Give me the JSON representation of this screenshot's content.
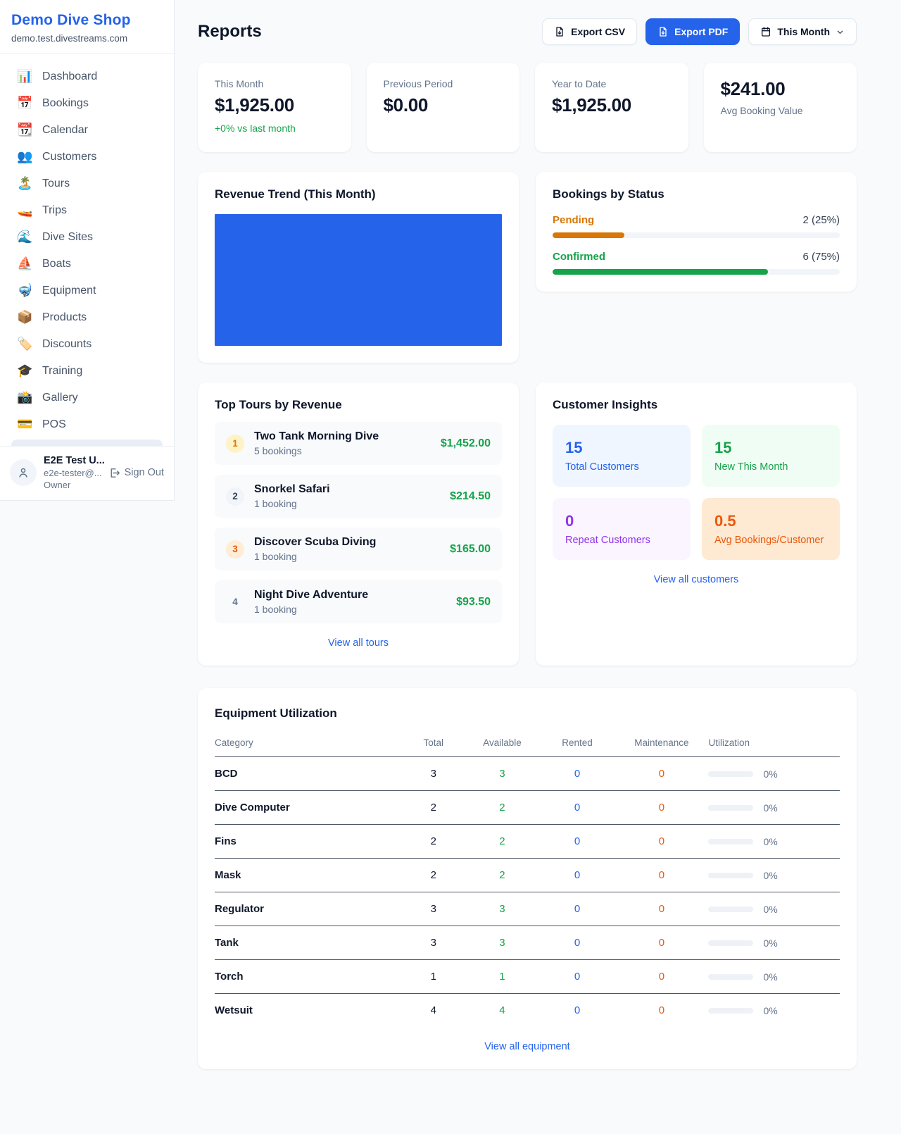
{
  "sidebar": {
    "brand": {
      "name": "Demo Dive Shop",
      "domain": "demo.test.divestreams.com"
    },
    "nav": [
      {
        "icon": "📊",
        "label": "Dashboard"
      },
      {
        "icon": "📅",
        "label": "Bookings"
      },
      {
        "icon": "📆",
        "label": "Calendar"
      },
      {
        "icon": "👥",
        "label": "Customers"
      },
      {
        "icon": "🏝️",
        "label": "Tours"
      },
      {
        "icon": "🚤",
        "label": "Trips"
      },
      {
        "icon": "🌊",
        "label": "Dive Sites"
      },
      {
        "icon": "⛵",
        "label": "Boats"
      },
      {
        "icon": "🤿",
        "label": "Equipment"
      },
      {
        "icon": "📦",
        "label": "Products"
      },
      {
        "icon": "🏷️",
        "label": "Discounts"
      },
      {
        "icon": "🎓",
        "label": "Training"
      },
      {
        "icon": "📸",
        "label": "Gallery"
      },
      {
        "icon": "💳",
        "label": "POS"
      }
    ],
    "user": {
      "name": "E2E Test U...",
      "email": "e2e-tester@...",
      "role": "Owner",
      "sign_out_label": "Sign Out"
    }
  },
  "header": {
    "title": "Reports",
    "export_csv_label": "Export CSV",
    "export_pdf_label": "Export PDF",
    "period_label": "This Month",
    "accent_color": "#2563eb"
  },
  "stats": [
    {
      "label": "This Month",
      "value": "$1,925.00",
      "delta": "+0% vs last month"
    },
    {
      "label": "Previous Period",
      "value": "$0.00"
    },
    {
      "label": "Year to Date",
      "value": "$1,925.00"
    },
    {
      "label": "Avg Booking Value",
      "value": "$241.00"
    }
  ],
  "revenue_trend": {
    "title": "Revenue Trend (This Month)",
    "chart_data": {
      "type": "bar",
      "categories": [
        "This Month"
      ],
      "values": [
        1925
      ],
      "title": "Revenue Trend (This Month)",
      "xlabel": "",
      "ylabel": "",
      "bar_color": "#2563eb",
      "note": "single bar fills the entire plot area, no axes or labels visible"
    }
  },
  "bookings_by_status": {
    "title": "Bookings by Status",
    "rows": [
      {
        "label": "Pending",
        "value": "2 (25%)",
        "pct": 25,
        "color": "#d97706"
      },
      {
        "label": "Confirmed",
        "value": "6 (75%)",
        "pct": 75,
        "color": "#16a34a"
      }
    ]
  },
  "top_tours": {
    "title": "Top Tours by Revenue",
    "items": [
      {
        "rank": "1",
        "name": "Two Tank Morning Dive",
        "bookings": "5 bookings",
        "revenue": "$1,452.00"
      },
      {
        "rank": "2",
        "name": "Snorkel Safari",
        "bookings": "1 booking",
        "revenue": "$214.50"
      },
      {
        "rank": "3",
        "name": "Discover Scuba Diving",
        "bookings": "1 booking",
        "revenue": "$165.00"
      },
      {
        "rank": "4",
        "name": "Night Dive Adventure",
        "bookings": "1 booking",
        "revenue": "$93.50"
      }
    ],
    "view_all": "View all tours"
  },
  "customer_insights": {
    "title": "Customer Insights",
    "tiles": [
      {
        "value": "15",
        "label": "Total Customers",
        "color": "#2563eb",
        "bg": "#eff6ff"
      },
      {
        "value": "15",
        "label": "New This Month",
        "color": "#16a34a",
        "bg": "#f0fdf4"
      },
      {
        "value": "0",
        "label": "Repeat Customers",
        "color": "#9333ea",
        "bg": "#faf5ff"
      },
      {
        "value": "0.5",
        "label": "Avg Bookings/Customer",
        "color": "#ea580c",
        "bg": "#fee9d2"
      }
    ],
    "view_all": "View all customers"
  },
  "equipment": {
    "title": "Equipment Utilization",
    "columns": [
      "Category",
      "Total",
      "Available",
      "Rented",
      "Maintenance",
      "Utilization"
    ],
    "rows": [
      {
        "category": "BCD",
        "total": "3",
        "available": "3",
        "rented": "0",
        "maintenance": "0",
        "utilization": "0%",
        "utilization_pct": 0
      },
      {
        "category": "Dive Computer",
        "total": "2",
        "available": "2",
        "rented": "0",
        "maintenance": "0",
        "utilization": "0%",
        "utilization_pct": 0
      },
      {
        "category": "Fins",
        "total": "2",
        "available": "2",
        "rented": "0",
        "maintenance": "0",
        "utilization": "0%",
        "utilization_pct": 0
      },
      {
        "category": "Mask",
        "total": "2",
        "available": "2",
        "rented": "0",
        "maintenance": "0",
        "utilization": "0%",
        "utilization_pct": 0
      },
      {
        "category": "Regulator",
        "total": "3",
        "available": "3",
        "rented": "0",
        "maintenance": "0",
        "utilization": "0%",
        "utilization_pct": 0
      },
      {
        "category": "Tank",
        "total": "3",
        "available": "3",
        "rented": "0",
        "maintenance": "0",
        "utilization": "0%",
        "utilization_pct": 0
      },
      {
        "category": "Torch",
        "total": "1",
        "available": "1",
        "rented": "0",
        "maintenance": "0",
        "utilization": "0%",
        "utilization_pct": 0
      },
      {
        "category": "Wetsuit",
        "total": "4",
        "available": "4",
        "rented": "0",
        "maintenance": "0",
        "utilization": "0%",
        "utilization_pct": 0
      }
    ],
    "view_all": "View all equipment"
  }
}
